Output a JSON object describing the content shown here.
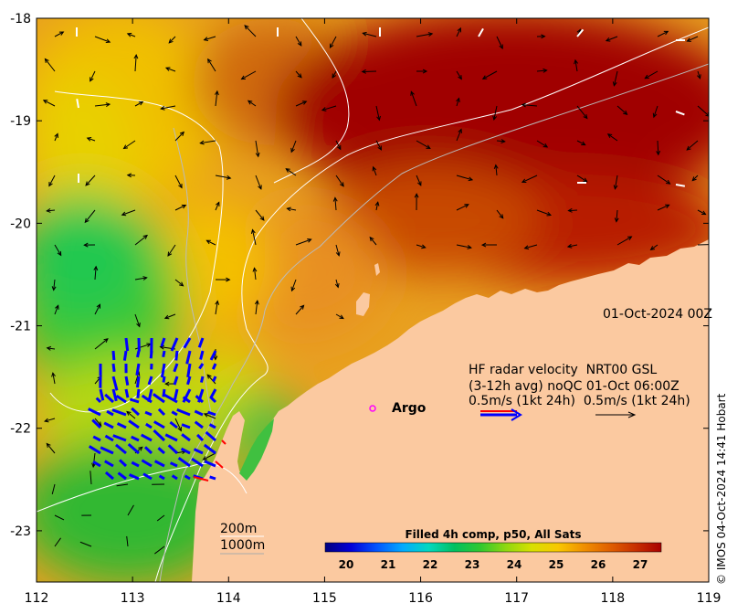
{
  "map": {
    "lon_range": [
      112,
      119
    ],
    "lat_range": [
      -23.5,
      -18
    ],
    "x_tick_labels": [
      "112",
      "113",
      "114",
      "115",
      "116",
      "117",
      "118",
      "119"
    ],
    "y_tick_labels": [
      "-18",
      "-19",
      "-20",
      "-21",
      "-22",
      "-23"
    ],
    "date_label": "01-Oct-2024 00Z",
    "argo_label": "Argo",
    "contour_labels": {
      "shallow": "200m",
      "deep": "1000m"
    },
    "land_color": "#fbc9a0",
    "contour_color": "#ffffff"
  },
  "legend": {
    "line1": "HF radar velocity  NRT00 GSL",
    "line2": "(3-12h avg) noQC 01-Oct 06:00Z",
    "line3": "0.5m/s (1kt 24h)  0.5m/s (1kt 24h)",
    "radar_arrow_colors": [
      "#ff0000",
      "#0000ff"
    ],
    "current_arrow_color": "#000000"
  },
  "colorbar": {
    "title": "Filled 4h comp, p50, All Sats",
    "range": [
      19.5,
      27.5
    ],
    "tick_labels": [
      "20",
      "21",
      "22",
      "23",
      "24",
      "25",
      "26",
      "27"
    ],
    "colors": [
      "#00007f",
      "#0000d8",
      "#0055ff",
      "#00aaff",
      "#00d8c0",
      "#00c060",
      "#30c830",
      "#90d810",
      "#d8e000",
      "#f8c800",
      "#f09000",
      "#e06000",
      "#c83000",
      "#a80000"
    ]
  },
  "credit": "© IMOS 04-Oct-2024 14:41 Hobart"
}
